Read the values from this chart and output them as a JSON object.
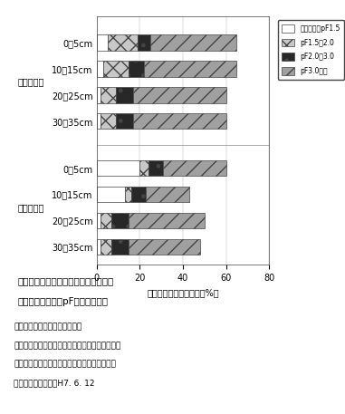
{
  "groups": [
    {
      "group_label": "転換初年目",
      "bars": [
        {
          "label": "0〜5cm",
          "values": [
            5,
            14,
            6,
            40
          ]
        },
        {
          "label": "10〜15cm",
          "values": [
            3,
            12,
            7,
            43
          ]
        },
        {
          "label": "20〜25cm",
          "values": [
            2,
            7,
            8,
            43
          ]
        },
        {
          "label": "30〜35cm",
          "values": [
            2,
            7,
            8,
            43
          ]
        }
      ]
    },
    {
      "group_label": "転換２年目",
      "bars": [
        {
          "label": "0〜5cm",
          "values": [
            20,
            4,
            7,
            29
          ]
        },
        {
          "label": "10〜15cm",
          "values": [
            13,
            3,
            7,
            20
          ]
        },
        {
          "label": "20〜25cm",
          "values": [
            2,
            5,
            8,
            35
          ]
        },
        {
          "label": "30〜35cm",
          "values": [
            2,
            5,
            8,
            33
          ]
        }
      ]
    }
  ],
  "legend_labels": [
    "毛管飽和－pF1.5",
    "pF1.5－2.0",
    "pF2.0－3.0",
    "pF3.0以上"
  ],
  "xlabel": "単位体積当たりの水分（%）",
  "xlim": [
    0,
    80
  ],
  "xticks": [
    0,
    20,
    40,
    60,
    80
  ],
  "bar_height": 0.6,
  "group1_label": "転換初年目",
  "group2_label": "転換２年目",
  "figure_caption_line1": "図２　畑転換初年目と２年目の圃場に",
  "figure_caption_line2": "　　おける土壌のpF範囲別水分量",
  "note_line1": "注）　転換初年目は水稲－大麦",
  "note_line2": "　　　転換２年目は水稲－イタリアンライグラス",
  "note_line3": "　　　　　　　　　　　　　　　－大豆－大麦",
  "note_line4": "　　　試料の採取はH7. 6. 12",
  "edge_color": "#444444"
}
